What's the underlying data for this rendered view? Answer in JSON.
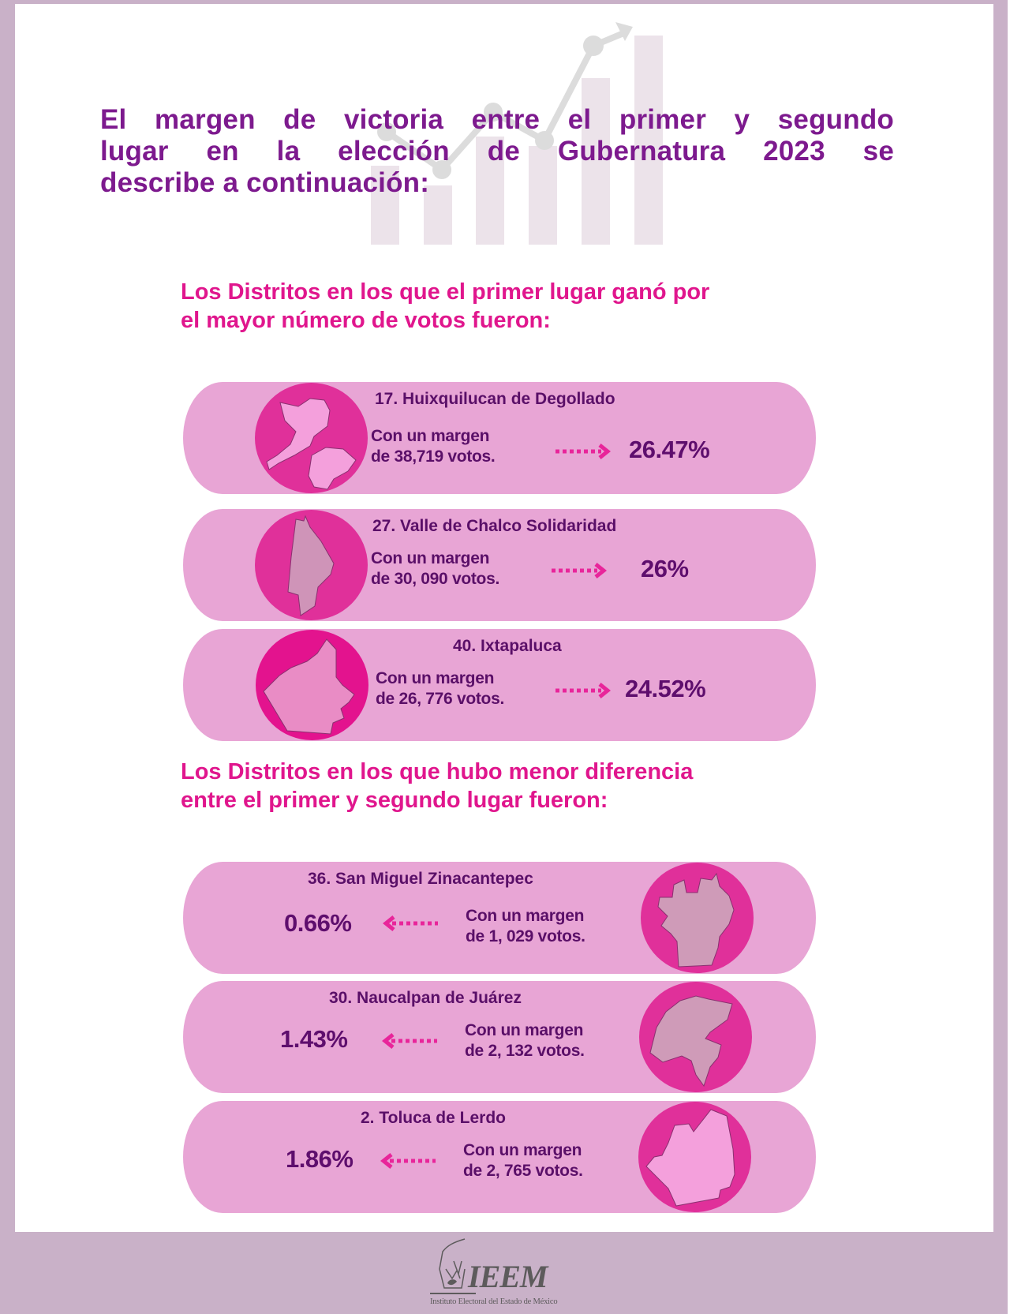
{
  "title": {
    "lines": [
      "El margen de victoria entre el primer y segundo",
      "lugar en la elección de Gubernatura 2023 se",
      "describe a continuación:"
    ]
  },
  "colors": {
    "frame": "#c9b1c8",
    "card": "#e8a5d5",
    "circle": "#e0309a",
    "text_dark": "#5a0f68",
    "heading": "#e0168d",
    "title": "#7d1a8e",
    "arrow": "#e8259a"
  },
  "section_top": {
    "heading_lines": [
      "Los Distritos en los que el primer lugar ganó por",
      "el mayor número de votos fueron:"
    ],
    "districts": [
      {
        "name": "17. Huixquilucan de Degollado",
        "margin_line1": "Con un margen",
        "margin_line2": "de 38,719 votos.",
        "percent": "26.47%",
        "arrow_icon": "dotted-arrow-right-icon"
      },
      {
        "name": "27. Valle de Chalco Solidaridad",
        "margin_line1": "Con un margen",
        "margin_line2": "de 30, 090 votos.",
        "percent": "26%",
        "arrow_icon": "dotted-arrow-right-icon"
      },
      {
        "name": "40. Ixtapaluca",
        "margin_line1": "Con un margen",
        "margin_line2": "de 26, 776 votos.",
        "percent": "24.52%",
        "arrow_icon": "dotted-arrow-right-icon"
      }
    ]
  },
  "section_bottom": {
    "heading_lines": [
      "Los Distritos en los que hubo menor diferencia",
      "entre el primer y segundo lugar fueron:"
    ],
    "districts": [
      {
        "name": "36. San Miguel Zinacantepec",
        "margin_line1": "Con un margen",
        "margin_line2": "de 1, 029 votos.",
        "percent": "0.66%",
        "arrow_icon": "dotted-arrow-left-icon"
      },
      {
        "name": "30. Naucalpan de Juárez",
        "margin_line1": "Con un margen",
        "margin_line2": "de 2, 132 votos.",
        "percent": "1.43%",
        "arrow_icon": "dotted-arrow-left-icon"
      },
      {
        "name": "2. Toluca de Lerdo",
        "margin_line1": "Con un margen",
        "margin_line2": "de 2, 765 votos.",
        "percent": "1.86%",
        "arrow_icon": "dotted-arrow-left-icon"
      }
    ]
  },
  "footer": {
    "logo_name": "IEEM",
    "logo_subtitle": "Instituto Electoral del Estado de México"
  }
}
